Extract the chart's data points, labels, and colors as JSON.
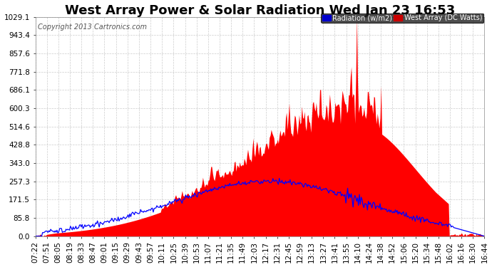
{
  "title": "West Array Power & Solar Radiation Wed Jan 23 16:53",
  "copyright": "Copyright 2013 Cartronics.com",
  "legend_radiation": "Radiation (w/m2)",
  "legend_west": "West Array (DC Watts)",
  "legend_radiation_bg": "#0000cc",
  "legend_west_bg": "#cc0000",
  "y_ticks": [
    0.0,
    85.8,
    171.5,
    257.3,
    343.0,
    428.8,
    514.6,
    600.3,
    686.1,
    771.8,
    857.6,
    943.4,
    1029.1
  ],
  "y_max": 1029.1,
  "y_min": 0.0,
  "background_color": "#ffffff",
  "grid_color": "#cccccc",
  "fill_color": "#ff0000",
  "line_color": "#0000ff",
  "x_labels": [
    "07:22",
    "07:51",
    "08:05",
    "08:19",
    "08:33",
    "08:47",
    "09:01",
    "09:15",
    "09:29",
    "09:43",
    "09:57",
    "10:11",
    "10:25",
    "10:39",
    "10:53",
    "11:07",
    "11:21",
    "11:35",
    "11:49",
    "12:03",
    "12:17",
    "12:31",
    "12:45",
    "12:59",
    "13:13",
    "13:27",
    "13:41",
    "13:55",
    "14:10",
    "14:24",
    "14:38",
    "14:52",
    "15:06",
    "15:20",
    "15:34",
    "15:48",
    "16:02",
    "16:16",
    "16:30",
    "16:44"
  ],
  "title_fontsize": 13,
  "tick_fontsize": 7.5,
  "copyright_fontsize": 7
}
